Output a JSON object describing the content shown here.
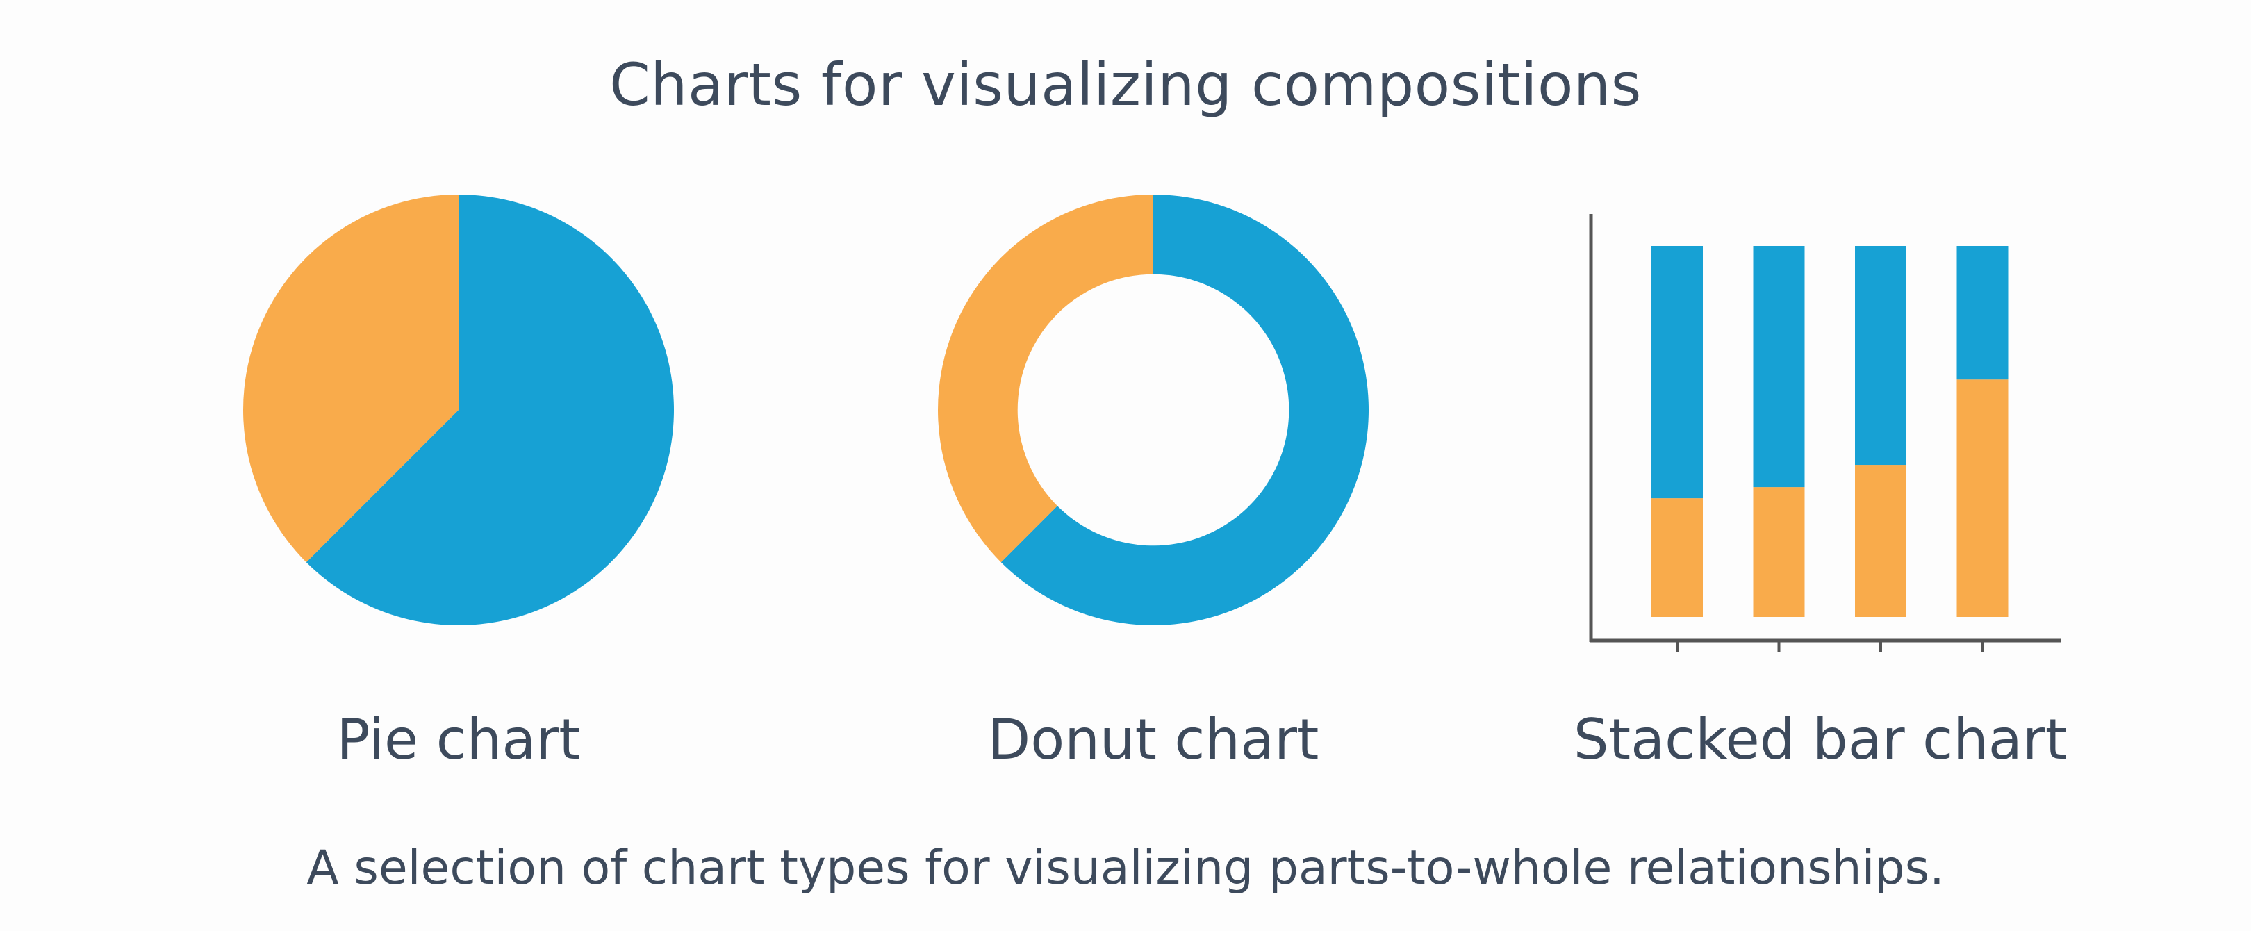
{
  "title": "Charts for visualizing compositions",
  "caption": "A selection of chart types for visualizing parts-to-whole relationships.",
  "colors": {
    "blue": "#17a1d4",
    "orange": "#f9ab4b",
    "axis": "#555555"
  },
  "chart_data": [
    {
      "type": "pie",
      "label": "Pie chart",
      "slices": [
        {
          "value": 62.5,
          "color": "#17a1d4"
        },
        {
          "value": 37.5,
          "color": "#f9ab4b"
        }
      ]
    },
    {
      "type": "donut",
      "label": "Donut chart",
      "slices": [
        {
          "value": 62.5,
          "color": "#17a1d4"
        },
        {
          "value": 37.5,
          "color": "#f9ab4b"
        }
      ]
    },
    {
      "type": "bar",
      "stacked": true,
      "label": "Stacked bar chart",
      "categories": [
        "",
        "",
        "",
        ""
      ],
      "ylim": [
        0,
        100
      ],
      "series": [
        {
          "values": [
            32,
            35,
            41,
            64
          ],
          "color": "#f9ab4b"
        },
        {
          "values": [
            68,
            65,
            59,
            36
          ],
          "color": "#17a1d4"
        }
      ]
    }
  ]
}
